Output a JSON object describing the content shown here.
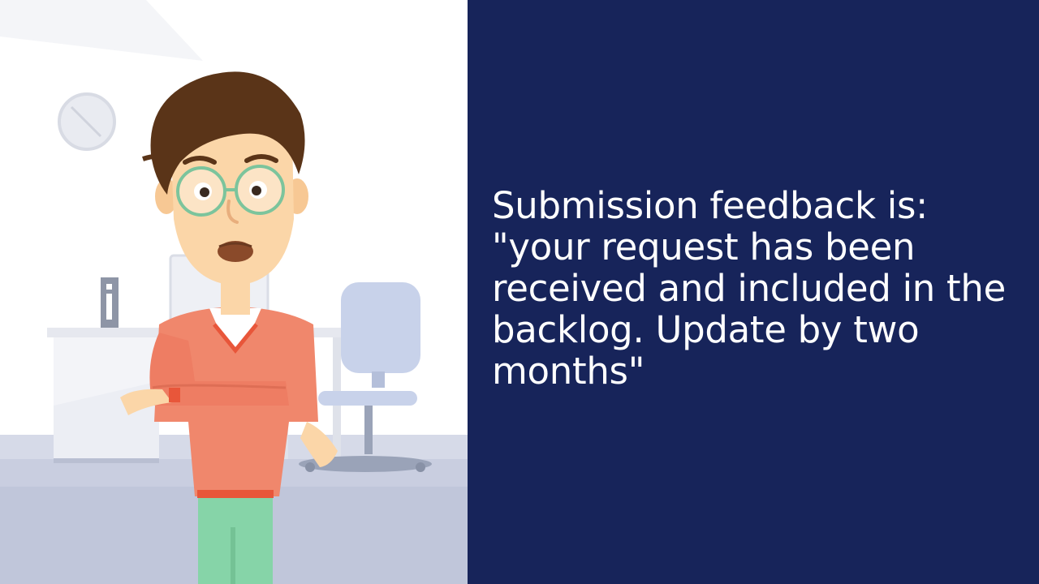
{
  "caption": {
    "text": "Submission feedback is: \"your request has been received and included in the backlog. Update by two months\""
  },
  "colors": {
    "panel_background": "#17245a",
    "caption_text": "#ffffff",
    "sweater": "#f0876c",
    "pants": "#86d4a8",
    "hair": "#5a3418",
    "floor": "#c9cee0"
  },
  "icons": {
    "character": "confused-man-illustration",
    "wall_clock": "clock-icon",
    "chair": "office-chair-icon"
  }
}
